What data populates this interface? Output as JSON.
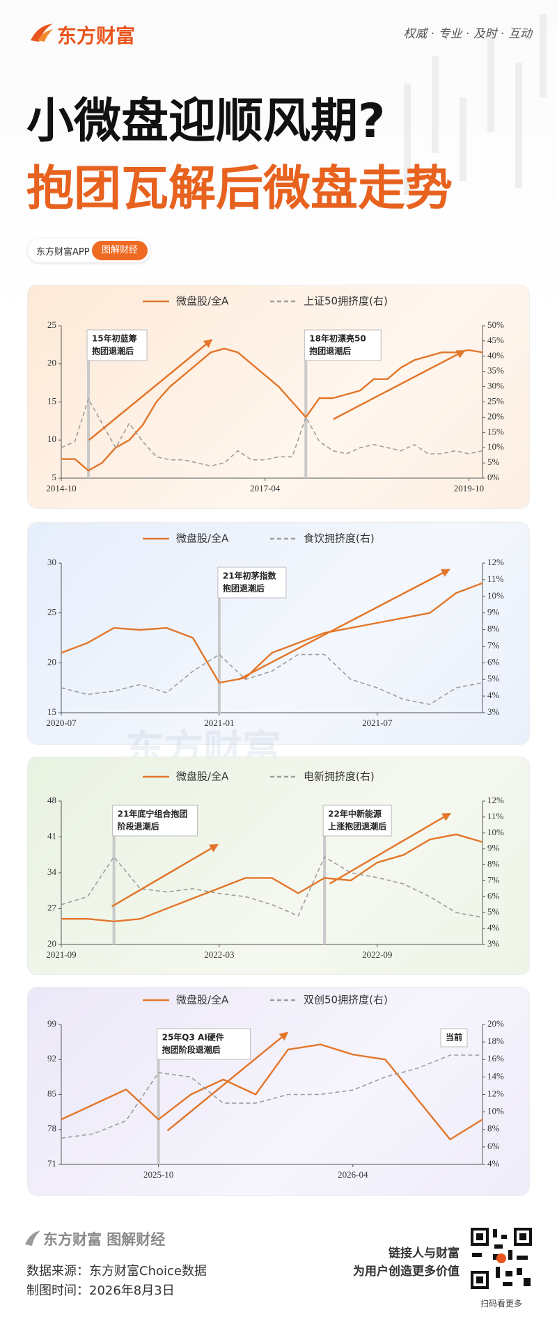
{
  "header": {
    "brand": "东方财富",
    "slogan": "权威 · 专业 · 及时 · 互动",
    "title": "小微盘迎顺风期?",
    "subtitle": "抱团瓦解后微盘走势",
    "app": "东方财富APP",
    "badge": "图解财经"
  },
  "watermark": "东方财富",
  "chart_data": [
    {
      "type": "line",
      "x": [
        "2014-10",
        "2014-12",
        "2015-02",
        "2015-04",
        "2015-06",
        "2015-08",
        "2015-10",
        "2015-12",
        "2016-02",
        "2016-04",
        "2016-06",
        "2016-08",
        "2016-10",
        "2016-12",
        "2017-02",
        "2017-04",
        "2017-06",
        "2017-08",
        "2017-10",
        "2017-12",
        "2018-02",
        "2018-04",
        "2018-06",
        "2018-08",
        "2018-10",
        "2018-12",
        "2019-02",
        "2019-04",
        "2019-06",
        "2019-08",
        "2019-10",
        "2019-12"
      ],
      "xlim": [
        "2014-10",
        "2019-12"
      ],
      "xticks": [
        "2014-10",
        "2017-04",
        "2019-10"
      ],
      "ylim": [
        5,
        25
      ],
      "yticks": [
        5,
        10,
        15,
        20,
        25
      ],
      "y2lim": [
        0,
        50
      ],
      "y2ticks": [
        {
          "value": 0,
          "label": "0%"
        },
        {
          "value": 5,
          "label": "5%"
        },
        {
          "value": 10,
          "label": "10%"
        },
        {
          "value": 15,
          "label": "15%"
        },
        {
          "value": 20,
          "label": "20%"
        },
        {
          "value": 25,
          "label": "25%"
        },
        {
          "value": 30,
          "label": "30%"
        },
        {
          "value": 35,
          "label": "35%"
        },
        {
          "value": 40,
          "label": "40%"
        },
        {
          "value": 45,
          "label": "45%"
        },
        {
          "value": 50,
          "label": "50%"
        }
      ],
      "series": [
        {
          "name": "微盘股/全A",
          "color": "#e2762a",
          "values": [
            7.5,
            7.5,
            6,
            7,
            9,
            10,
            12,
            15,
            17,
            18.5,
            20,
            21.5,
            22,
            21.5,
            20,
            18.5,
            17,
            15,
            13,
            15.5,
            15.5,
            16,
            16.5,
            18,
            18,
            19.5,
            20.5,
            21,
            21.5,
            21.5,
            21.8,
            21.5
          ]
        },
        {
          "name": "上证50拥挤度(右)",
          "color": "#9d9d9d",
          "axis": "y2",
          "values": [
            10,
            12,
            26,
            18,
            10,
            18,
            12,
            7,
            6,
            6,
            5,
            4,
            5,
            9,
            6,
            6,
            7,
            7,
            20,
            12,
            9,
            8,
            10,
            11,
            10,
            9,
            11,
            8,
            8,
            9,
            8,
            9
          ]
        }
      ],
      "annotations": [
        {
          "x": "2015-02",
          "lines": [
            "15年初蓝筹",
            "抱团退潮后"
          ]
        },
        {
          "x": "2017-10",
          "lines": [
            "18年初漂亮50",
            "抱团退潮后"
          ]
        }
      ]
    },
    {
      "type": "line",
      "x": [
        "2020-07",
        "2020-08",
        "2020-09",
        "2020-10",
        "2020-11",
        "2020-12",
        "2021-01",
        "2021-02",
        "2021-03",
        "2021-04",
        "2021-05",
        "2021-06",
        "2021-07",
        "2021-08",
        "2021-09",
        "2021-10",
        "2021-11"
      ],
      "xlim": [
        "2020-07",
        "2021-11"
      ],
      "xticks": [
        "2020-07",
        "2021-01",
        "2021-07"
      ],
      "ylim": [
        15,
        30
      ],
      "yticks": [
        15,
        20,
        25,
        30
      ],
      "y2lim": [
        3,
        12
      ],
      "y2ticks": [
        {
          "value": 3,
          "label": "3%"
        },
        {
          "value": 4,
          "label": "4%"
        },
        {
          "value": 5,
          "label": "5%"
        },
        {
          "value": 6,
          "label": "6%"
        },
        {
          "value": 7,
          "label": "7%"
        },
        {
          "value": 8,
          "label": "8%"
        },
        {
          "value": 9,
          "label": "9%"
        },
        {
          "value": 10,
          "label": "10%"
        },
        {
          "value": 11,
          "label": "11%"
        },
        {
          "value": 12,
          "label": "12%"
        }
      ],
      "series": [
        {
          "name": "微盘股/全A",
          "color": "#e2762a",
          "values": [
            21,
            22,
            23.5,
            23.3,
            23.5,
            22.5,
            18,
            18.5,
            21,
            22,
            23,
            23.5,
            24,
            24.5,
            25,
            27,
            28
          ]
        },
        {
          "name": "食饮拥挤度(右)",
          "color": "#9d9d9d",
          "axis": "y2",
          "values": [
            4.5,
            4.1,
            4.3,
            4.7,
            4.2,
            5.5,
            6.5,
            5,
            5.5,
            6.5,
            6.5,
            5,
            4.5,
            3.8,
            3.5,
            4.5,
            4.8
          ]
        }
      ],
      "annotations": [
        {
          "x": "2021-01",
          "lines": [
            "21年初茅指数",
            "抱团退潮后"
          ]
        }
      ]
    },
    {
      "type": "line",
      "x": [
        "2021-09",
        "2021-10",
        "2021-11",
        "2021-12",
        "2022-01",
        "2022-02",
        "2022-03",
        "2022-04",
        "2022-05",
        "2022-06",
        "2022-07",
        "2022-08",
        "2022-09",
        "2022-10",
        "2022-11",
        "2022-12",
        "2023-01"
      ],
      "xlim": [
        "2021-09",
        "2023-01"
      ],
      "xticks": [
        "2021-09",
        "2022-03",
        "2022-09"
      ],
      "ylim": [
        20,
        48
      ],
      "yticks": [
        20,
        27,
        34,
        41,
        48
      ],
      "y2lim": [
        3,
        12
      ],
      "y2ticks": [
        {
          "value": 3,
          "label": "3%"
        },
        {
          "value": 4,
          "label": "4%"
        },
        {
          "value": 5,
          "label": "5%"
        },
        {
          "value": 6,
          "label": "6%"
        },
        {
          "value": 7,
          "label": "7%"
        },
        {
          "value": 8,
          "label": "8%"
        },
        {
          "value": 9,
          "label": "9%"
        },
        {
          "value": 10,
          "label": "10%"
        },
        {
          "value": 11,
          "label": "11%"
        },
        {
          "value": 12,
          "label": "12%"
        }
      ],
      "series": [
        {
          "name": "微盘股/全A",
          "color": "#e2762a",
          "values": [
            25,
            25,
            24.5,
            25,
            27,
            29,
            31,
            33,
            33,
            30,
            33,
            32.5,
            36,
            37.5,
            40.5,
            41.5,
            40
          ]
        },
        {
          "name": "电新拥挤度(右)",
          "color": "#9d9d9d",
          "axis": "y2",
          "values": [
            5.5,
            6,
            8.5,
            6.5,
            6.3,
            6.5,
            6.2,
            6,
            5.5,
            4.8,
            8.5,
            7.5,
            7.2,
            6.8,
            6,
            5,
            4.7
          ]
        }
      ],
      "annotations": [
        {
          "x": "2021-11",
          "lines": [
            "21年底宁组合抱团",
            "阶段退潮后"
          ]
        },
        {
          "x": "2022-07",
          "lines": [
            "22年中新能源",
            "上涨抱团退潮后"
          ]
        }
      ]
    },
    {
      "type": "line",
      "x": [
        "2025-07",
        "2025-08",
        "2025-09",
        "2025-10",
        "2025-11",
        "2025-12",
        "2026-01",
        "2026-02",
        "2026-03",
        "2026-04",
        "2026-05",
        "2026-06",
        "2026-07",
        "2026-08"
      ],
      "xlim": [
        "2025-07",
        "2026-08"
      ],
      "xticks": [
        "2025-10",
        "2026-04"
      ],
      "ylim": [
        71,
        99
      ],
      "yticks": [
        71,
        78,
        85,
        92,
        99
      ],
      "y2lim": [
        4,
        20
      ],
      "y2ticks": [
        {
          "value": 4,
          "label": "4%"
        },
        {
          "value": 6,
          "label": "6%"
        },
        {
          "value": 8,
          "label": "8%"
        },
        {
          "value": 10,
          "label": "10%"
        },
        {
          "value": 12,
          "label": "12%"
        },
        {
          "value": 14,
          "label": "14%"
        },
        {
          "value": 16,
          "label": "16%"
        },
        {
          "value": 18,
          "label": "18%"
        },
        {
          "value": 20,
          "label": "20%"
        }
      ],
      "series": [
        {
          "name": "微盘股/全A",
          "color": "#e2762a",
          "values": [
            80,
            83,
            86,
            80,
            85,
            88,
            85,
            94,
            95,
            93,
            92,
            84,
            76,
            80
          ]
        },
        {
          "name": "双创50拥挤度(右)",
          "color": "#9d9d9d",
          "axis": "y2",
          "values": [
            7,
            7.5,
            9,
            14.5,
            14,
            11,
            11,
            12,
            12,
            12.5,
            14,
            15,
            16.5,
            16.5
          ]
        }
      ],
      "annotations": [
        {
          "x": "2025-10",
          "lines": [
            "25年Q3 AI硬件",
            "抱团阶段退潮后"
          ]
        },
        {
          "lines": [
            "当前"
          ]
        }
      ]
    }
  ],
  "footer": {
    "brand": "东方财富 图解财经",
    "source": "数据来源：东方财富Choice数据",
    "date": "制图时间：2026年8月3日",
    "motto1": "链接人与财富",
    "motto2": "为用户创造更多价值",
    "qr": "扫码看更多"
  }
}
